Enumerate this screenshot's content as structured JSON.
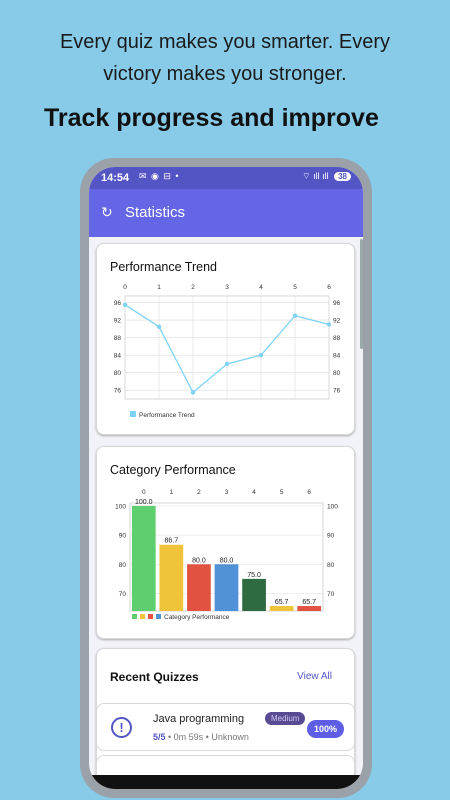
{
  "tagline": {
    "line1": "Every quiz makes you smarter. Every",
    "line2": "victory makes you stronger."
  },
  "headline": "Track progress and improve",
  "status_bar": {
    "time": "14:54",
    "left_icons": "✉ ◉ ⊟ •",
    "right_icons": "⌔ ıll ıll",
    "battery": "38"
  },
  "app_bar": {
    "title": "Statistics",
    "back_icon": "refresh-icon"
  },
  "performance_card": {
    "title": "Performance Trend",
    "chart_data": {
      "type": "line",
      "x": [
        0,
        1,
        2,
        3,
        4,
        5,
        6
      ],
      "series": [
        {
          "name": "Performance Trend",
          "values": [
            95.5,
            90.5,
            75.5,
            82,
            84,
            93,
            91
          ]
        }
      ],
      "x_ticks": [
        "0",
        "1",
        "2",
        "3",
        "4",
        "5",
        "6"
      ],
      "y_ticks": [
        "96",
        "92",
        "88",
        "84",
        "80",
        "76"
      ],
      "ylim": [
        74,
        97.5
      ],
      "color": "#7ed3f5",
      "legend": "Performance Trend",
      "legend_position": "bottom-left",
      "grid": true
    }
  },
  "category_card": {
    "title": "Category Performance",
    "chart_data": {
      "type": "bar",
      "categories": [
        "0",
        "1",
        "2",
        "3",
        "4",
        "5",
        "6"
      ],
      "values": [
        100.0,
        86.7,
        80.0,
        80.0,
        75.0,
        65.7,
        65.7
      ],
      "labels": [
        "100.0",
        "86.7",
        "80.0",
        "80.0",
        "75.0",
        "65.7",
        "65.7"
      ],
      "colors": [
        "#5fce6e",
        "#efc43a",
        "#e15340",
        "#4f92d8",
        "#2e6b40",
        "#efc43a",
        "#e15340"
      ],
      "y_ticks": [
        "100",
        "90",
        "80",
        "70"
      ],
      "ylim": [
        64,
        101
      ],
      "legend": "Category Performance",
      "legend_colors": [
        "#5fce6e",
        "#efc43a",
        "#e15340",
        "#4f92d8"
      ],
      "legend_position": "bottom-left",
      "grid": true
    }
  },
  "recent": {
    "title": "Recent Quizzes",
    "view_all": "View All"
  },
  "quiz": {
    "title": "Java programming",
    "badge": "Medium",
    "score": "5/5",
    "meta": " • 0m 59s • Unknown",
    "percent": "100%",
    "icon": "info-icon"
  }
}
